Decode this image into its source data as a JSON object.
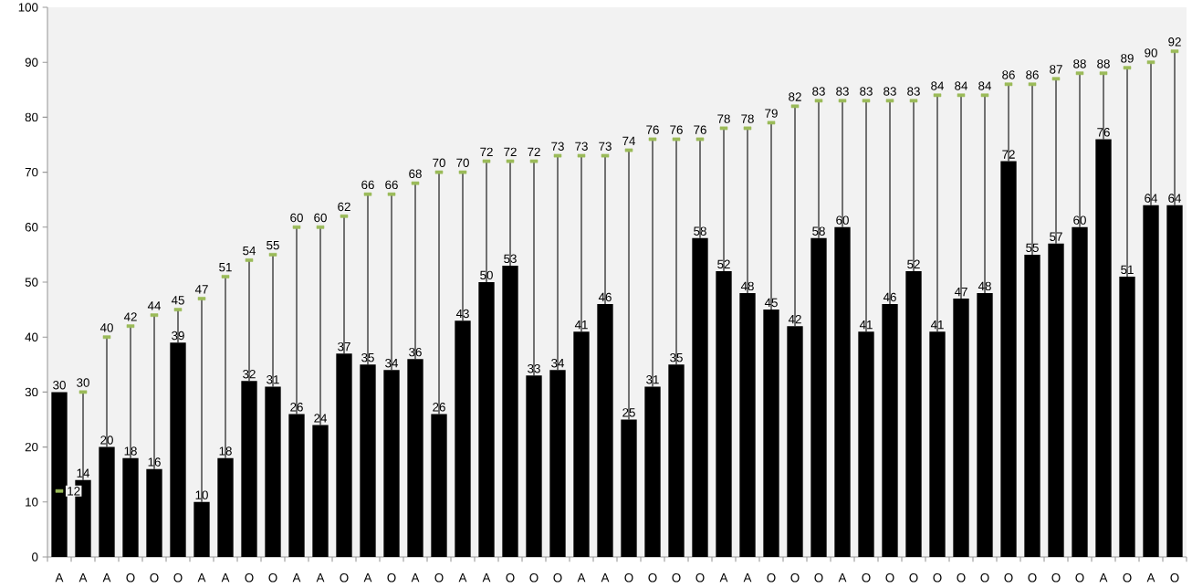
{
  "chart_data": {
    "type": "bar",
    "categories": [
      "A",
      "A",
      "A",
      "O",
      "O",
      "O",
      "A",
      "A",
      "O",
      "O",
      "A",
      "A",
      "O",
      "A",
      "O",
      "A",
      "O",
      "A",
      "A",
      "O",
      "O",
      "O",
      "A",
      "A",
      "O",
      "O",
      "O",
      "O",
      "A",
      "A",
      "O",
      "O",
      "O",
      "A",
      "O",
      "O",
      "O",
      "O",
      "O",
      "O",
      "O",
      "O",
      "O",
      "O",
      "A",
      "O",
      "A",
      "O"
    ],
    "ylim": [
      0,
      100
    ],
    "yticks": [
      0,
      10,
      20,
      30,
      40,
      50,
      60,
      70,
      80,
      90,
      100
    ],
    "data_labels": true,
    "series": [
      {
        "color": "#000000",
        "values": [
          30,
          14,
          20,
          18,
          16,
          39,
          10,
          18,
          32,
          31,
          26,
          24,
          37,
          35,
          34,
          36,
          26,
          43,
          50,
          53,
          33,
          34,
          41,
          46,
          25,
          31,
          35,
          58,
          52,
          48,
          45,
          42,
          58,
          60,
          41,
          46,
          52,
          41,
          47,
          48,
          72,
          55,
          57,
          60,
          76,
          51,
          64,
          64
        ]
      },
      {
        "type": "scatter",
        "marker": "square",
        "color": "#9bbb59",
        "values": [
          12,
          30,
          40,
          42,
          44,
          45,
          47,
          51,
          54,
          55,
          60,
          60,
          62,
          66,
          66,
          68,
          70,
          70,
          72,
          72,
          72,
          73,
          73,
          73,
          74,
          76,
          76,
          76,
          78,
          78,
          79,
          82,
          83,
          83,
          83,
          83,
          83,
          84,
          84,
          84,
          86,
          86,
          87,
          88,
          88,
          89,
          90,
          92
        ],
        "errors": [
          null,
          [
            14,
            30
          ],
          [
            20,
            40
          ],
          [
            18,
            42
          ],
          [
            16,
            44
          ],
          [
            39,
            45
          ],
          [
            10,
            47
          ],
          [
            18,
            51
          ],
          [
            32,
            54
          ],
          [
            31,
            55
          ],
          [
            26,
            60
          ],
          [
            24,
            60
          ],
          [
            37,
            62
          ],
          [
            35,
            66
          ],
          [
            34,
            66
          ],
          [
            36,
            68
          ],
          [
            26,
            70
          ],
          [
            43,
            70
          ],
          [
            50,
            72
          ],
          [
            53,
            72
          ],
          [
            33,
            72
          ],
          [
            34,
            73
          ],
          [
            41,
            73
          ],
          [
            46,
            73
          ],
          [
            25,
            74
          ],
          [
            31,
            76
          ],
          [
            35,
            76
          ],
          [
            58,
            76
          ],
          [
            52,
            78
          ],
          [
            48,
            78
          ],
          [
            45,
            79
          ],
          [
            42,
            82
          ],
          [
            58,
            83
          ],
          [
            60,
            83
          ],
          [
            41,
            83
          ],
          [
            46,
            83
          ],
          [
            52,
            83
          ],
          [
            41,
            84
          ],
          [
            47,
            84
          ],
          [
            48,
            84
          ],
          [
            72,
            86
          ],
          [
            55,
            86
          ],
          [
            57,
            87
          ],
          [
            60,
            88
          ],
          [
            76,
            88
          ],
          [
            51,
            89
          ],
          [
            64,
            90
          ],
          [
            64,
            92
          ]
        ]
      }
    ]
  }
}
